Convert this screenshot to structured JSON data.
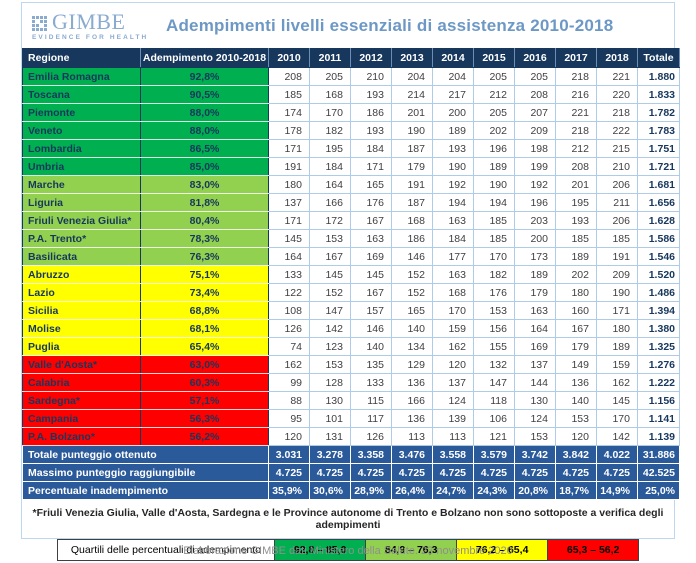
{
  "header": {
    "logo_name": "GIMBE",
    "logo_tagline": "EVIDENCE FOR HEALTH",
    "title": "Adempimenti livelli essenziali di assistenza 2010-2018"
  },
  "chart_data": {
    "type": "table",
    "title": "Adempimenti livelli essenziali di assistenza 2010-2018",
    "columns": [
      "Regione",
      "Adempimento 2010-2018",
      "2010",
      "2011",
      "2012",
      "2013",
      "2014",
      "2015",
      "2016",
      "2017",
      "2018",
      "Totale"
    ],
    "rows": [
      {
        "region": "Emilia Romagna",
        "adempimento": "92,8%",
        "quartile": "q1",
        "values": [
          208,
          205,
          210,
          204,
          204,
          205,
          205,
          218,
          221
        ],
        "total": "1.880"
      },
      {
        "region": "Toscana",
        "adempimento": "90,5%",
        "quartile": "q1",
        "values": [
          185,
          168,
          193,
          214,
          217,
          212,
          208,
          216,
          220
        ],
        "total": "1.833"
      },
      {
        "region": "Piemonte",
        "adempimento": "88,0%",
        "quartile": "q1",
        "values": [
          174,
          170,
          186,
          201,
          200,
          205,
          207,
          221,
          218
        ],
        "total": "1.782"
      },
      {
        "region": "Veneto",
        "adempimento": "88,0%",
        "quartile": "q1",
        "values": [
          178,
          182,
          193,
          190,
          189,
          202,
          209,
          218,
          222
        ],
        "total": "1.783"
      },
      {
        "region": "Lombardia",
        "adempimento": "86,5%",
        "quartile": "q1",
        "values": [
          171,
          195,
          184,
          187,
          193,
          196,
          198,
          212,
          215
        ],
        "total": "1.751"
      },
      {
        "region": "Umbria",
        "adempimento": "85,0%",
        "quartile": "q1",
        "values": [
          191,
          184,
          171,
          179,
          190,
          189,
          199,
          208,
          210
        ],
        "total": "1.721"
      },
      {
        "region": "Marche",
        "adempimento": "83,0%",
        "quartile": "q2",
        "values": [
          180,
          164,
          165,
          191,
          192,
          190,
          192,
          201,
          206
        ],
        "total": "1.681"
      },
      {
        "region": "Liguria",
        "adempimento": "81,8%",
        "quartile": "q2",
        "values": [
          137,
          166,
          176,
          187,
          194,
          194,
          196,
          195,
          211
        ],
        "total": "1.656"
      },
      {
        "region": "Friuli Venezia Giulia*",
        "adempimento": "80,4%",
        "quartile": "q2",
        "values": [
          171,
          172,
          167,
          168,
          163,
          185,
          203,
          193,
          206
        ],
        "total": "1.628"
      },
      {
        "region": "P.A. Trento*",
        "adempimento": "78,3%",
        "quartile": "q2",
        "values": [
          145,
          153,
          163,
          186,
          184,
          185,
          200,
          185,
          185
        ],
        "total": "1.586"
      },
      {
        "region": "Basilicata",
        "adempimento": "76,3%",
        "quartile": "q2",
        "values": [
          164,
          167,
          169,
          146,
          177,
          170,
          173,
          189,
          191
        ],
        "total": "1.546"
      },
      {
        "region": "Abruzzo",
        "adempimento": "75,1%",
        "quartile": "q3",
        "values": [
          133,
          145,
          145,
          152,
          163,
          182,
          189,
          202,
          209
        ],
        "total": "1.520"
      },
      {
        "region": "Lazio",
        "adempimento": "73,4%",
        "quartile": "q3",
        "values": [
          122,
          152,
          167,
          152,
          168,
          176,
          179,
          180,
          190
        ],
        "total": "1.486"
      },
      {
        "region": "Sicilia",
        "adempimento": "68,8%",
        "quartile": "q3",
        "values": [
          108,
          147,
          157,
          165,
          170,
          153,
          163,
          160,
          171
        ],
        "total": "1.394"
      },
      {
        "region": "Molise",
        "adempimento": "68,1%",
        "quartile": "q3",
        "values": [
          126,
          142,
          146,
          140,
          159,
          156,
          164,
          167,
          180
        ],
        "total": "1.380"
      },
      {
        "region": "Puglia",
        "adempimento": "65,4%",
        "quartile": "q3",
        "values": [
          74,
          123,
          140,
          134,
          162,
          155,
          169,
          179,
          189
        ],
        "total": "1.325"
      },
      {
        "region": "Valle d'Aosta*",
        "adempimento": "63,0%",
        "quartile": "q4",
        "values": [
          162,
          153,
          135,
          129,
          120,
          132,
          137,
          149,
          159
        ],
        "total": "1.276"
      },
      {
        "region": "Calabria",
        "adempimento": "60,3%",
        "quartile": "q4",
        "values": [
          99,
          128,
          133,
          136,
          137,
          147,
          144,
          136,
          162
        ],
        "total": "1.222"
      },
      {
        "region": "Sardegna*",
        "adempimento": "57,1%",
        "quartile": "q4",
        "values": [
          88,
          130,
          115,
          166,
          124,
          118,
          130,
          140,
          145
        ],
        "total": "1.156"
      },
      {
        "region": "Campania",
        "adempimento": "56,3%",
        "quartile": "q4",
        "values": [
          95,
          101,
          117,
          136,
          139,
          106,
          124,
          153,
          170
        ],
        "total": "1.141"
      },
      {
        "region": "P.A. Bolzano*",
        "adempimento": "56,2%",
        "quartile": "q4",
        "values": [
          120,
          131,
          126,
          113,
          113,
          121,
          153,
          120,
          142
        ],
        "total": "1.139"
      }
    ],
    "summary": [
      {
        "label": "Totale punteggio ottenuto",
        "values": [
          "3.031",
          "3.278",
          "3.358",
          "3.476",
          "3.558",
          "3.579",
          "3.742",
          "3.842",
          "4.022"
        ],
        "total": "31.886"
      },
      {
        "label": "Massimo punteggio raggiungibile",
        "values": [
          "4.725",
          "4.725",
          "4.725",
          "4.725",
          "4.725",
          "4.725",
          "4.725",
          "4.725",
          "4.725"
        ],
        "total": "42.525"
      },
      {
        "label": "Percentuale inadempimento",
        "values": [
          "35,9%",
          "30,6%",
          "28,9%",
          "26,4%",
          "24,7%",
          "24,3%",
          "20,8%",
          "18,7%",
          "14,9%"
        ],
        "total": "25,0%"
      }
    ]
  },
  "footnote": "*Friuli Venezia Giulia, Valle d'Aosta, Sardegna e le Province autonome di Trento e Bolzano non sono sottoposte a verifica degli adempimenti",
  "legend": {
    "label": "Quartili delle percentuali di adempimento",
    "items": [
      {
        "range": "92,8 – 85,0",
        "color": "#00B050"
      },
      {
        "range": "84,9 – 76,3",
        "color": "#92D050"
      },
      {
        "range": "76,2 – 65,4",
        "color": "#FFFF00"
      },
      {
        "range": "65,3 – 56,2",
        "color": "#FF0000"
      }
    ]
  },
  "footer": "Elaborazione GIMBE dati Ministero della Salute. 23 novembre 2020",
  "colors": {
    "header_row": "#17375D",
    "summary_row": "#2B5A9A",
    "navy_text": "#17375D",
    "title_blue": "#6D98C5",
    "logo_blue": "#8AABD0",
    "quartiles": {
      "q1": "#00B050",
      "q2": "#92D050",
      "q3": "#FFFF00",
      "q4": "#FF0000"
    }
  }
}
